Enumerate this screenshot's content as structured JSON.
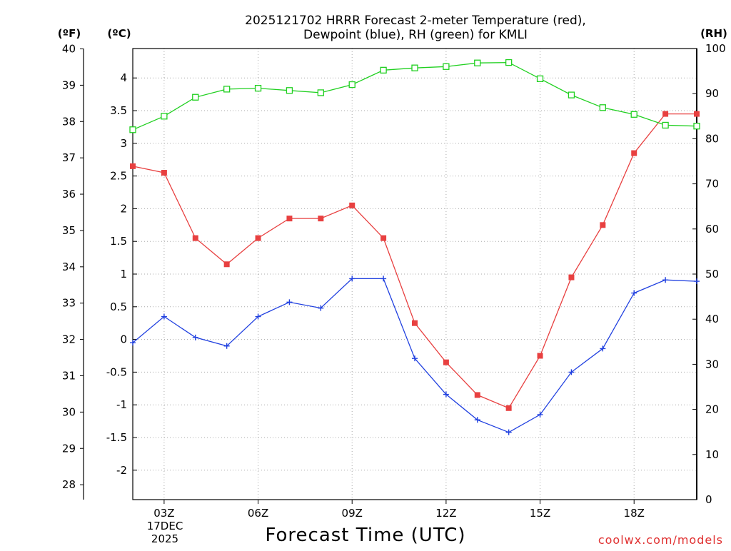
{
  "chart_data": {
    "type": "line",
    "title": "2025121702 HRRR Forecast 2-meter Temperature (red),",
    "subtitle": "Dewpoint (blue), RH (green) for KMLI",
    "xlabel": "Forecast Time (UTC)",
    "credit": "coolwx.com/models",
    "units": {
      "fahrenheit": "(ºF)",
      "celsius": "(ºC)",
      "rh": "(RH)"
    },
    "date_label": [
      "17DEC",
      "2025"
    ],
    "x_hours": [
      2,
      3,
      4,
      5,
      6,
      7,
      8,
      9,
      10,
      11,
      12,
      13,
      14,
      15,
      16,
      17,
      18,
      19,
      20
    ],
    "x_ticks": [
      {
        "hour": 3,
        "label": "03Z"
      },
      {
        "hour": 6,
        "label": "06Z"
      },
      {
        "hour": 9,
        "label": "09Z"
      },
      {
        "hour": 12,
        "label": "12Z"
      },
      {
        "hour": 15,
        "label": "15Z"
      },
      {
        "hour": 18,
        "label": "18Z"
      }
    ],
    "xlim": [
      2,
      20
    ],
    "celsius_axis": {
      "ylim": [
        -2.45,
        4.45
      ],
      "ticks": [
        "-2",
        "-1.5",
        "-1",
        "-0.5",
        "0",
        "0.5",
        "1",
        "1.5",
        "2",
        "2.5",
        "3",
        "3.5",
        "4"
      ]
    },
    "fahrenheit_axis": {
      "ticks": [
        "28",
        "29",
        "30",
        "31",
        "32",
        "33",
        "34",
        "35",
        "36",
        "37",
        "38",
        "39",
        "40"
      ]
    },
    "rh_axis": {
      "ylim": [
        0,
        100
      ],
      "ticks": [
        "0",
        "10",
        "20",
        "30",
        "40",
        "50",
        "60",
        "70",
        "80",
        "90",
        "100"
      ]
    },
    "grid": true,
    "series": [
      {
        "name": "Temperature",
        "axis": "celsius",
        "color": "#e84040",
        "marker": "filled-square",
        "values": [
          2.65,
          2.55,
          1.55,
          1.15,
          1.55,
          1.85,
          1.85,
          2.05,
          1.55,
          0.25,
          -0.35,
          -0.85,
          -1.05,
          -0.25,
          0.95,
          1.75,
          2.85,
          3.45,
          3.45
        ]
      },
      {
        "name": "Dewpoint",
        "axis": "celsius",
        "color": "#2040e0",
        "marker": "plus",
        "values": [
          -0.05,
          0.35,
          0.03,
          -0.1,
          0.35,
          0.57,
          0.48,
          0.93,
          0.93,
          -0.29,
          -0.84,
          -1.23,
          -1.42,
          -1.15,
          -0.5,
          -0.14,
          0.71,
          0.91,
          0.89
        ]
      },
      {
        "name": "RH",
        "axis": "rh",
        "color": "#20d020",
        "marker": "open-square",
        "values": [
          82,
          85,
          89.2,
          91,
          91.2,
          90.7,
          90.2,
          92,
          95.2,
          95.7,
          96,
          96.8,
          96.9,
          93.3,
          89.7,
          86.9,
          85.4,
          83,
          82.8
        ]
      }
    ]
  }
}
